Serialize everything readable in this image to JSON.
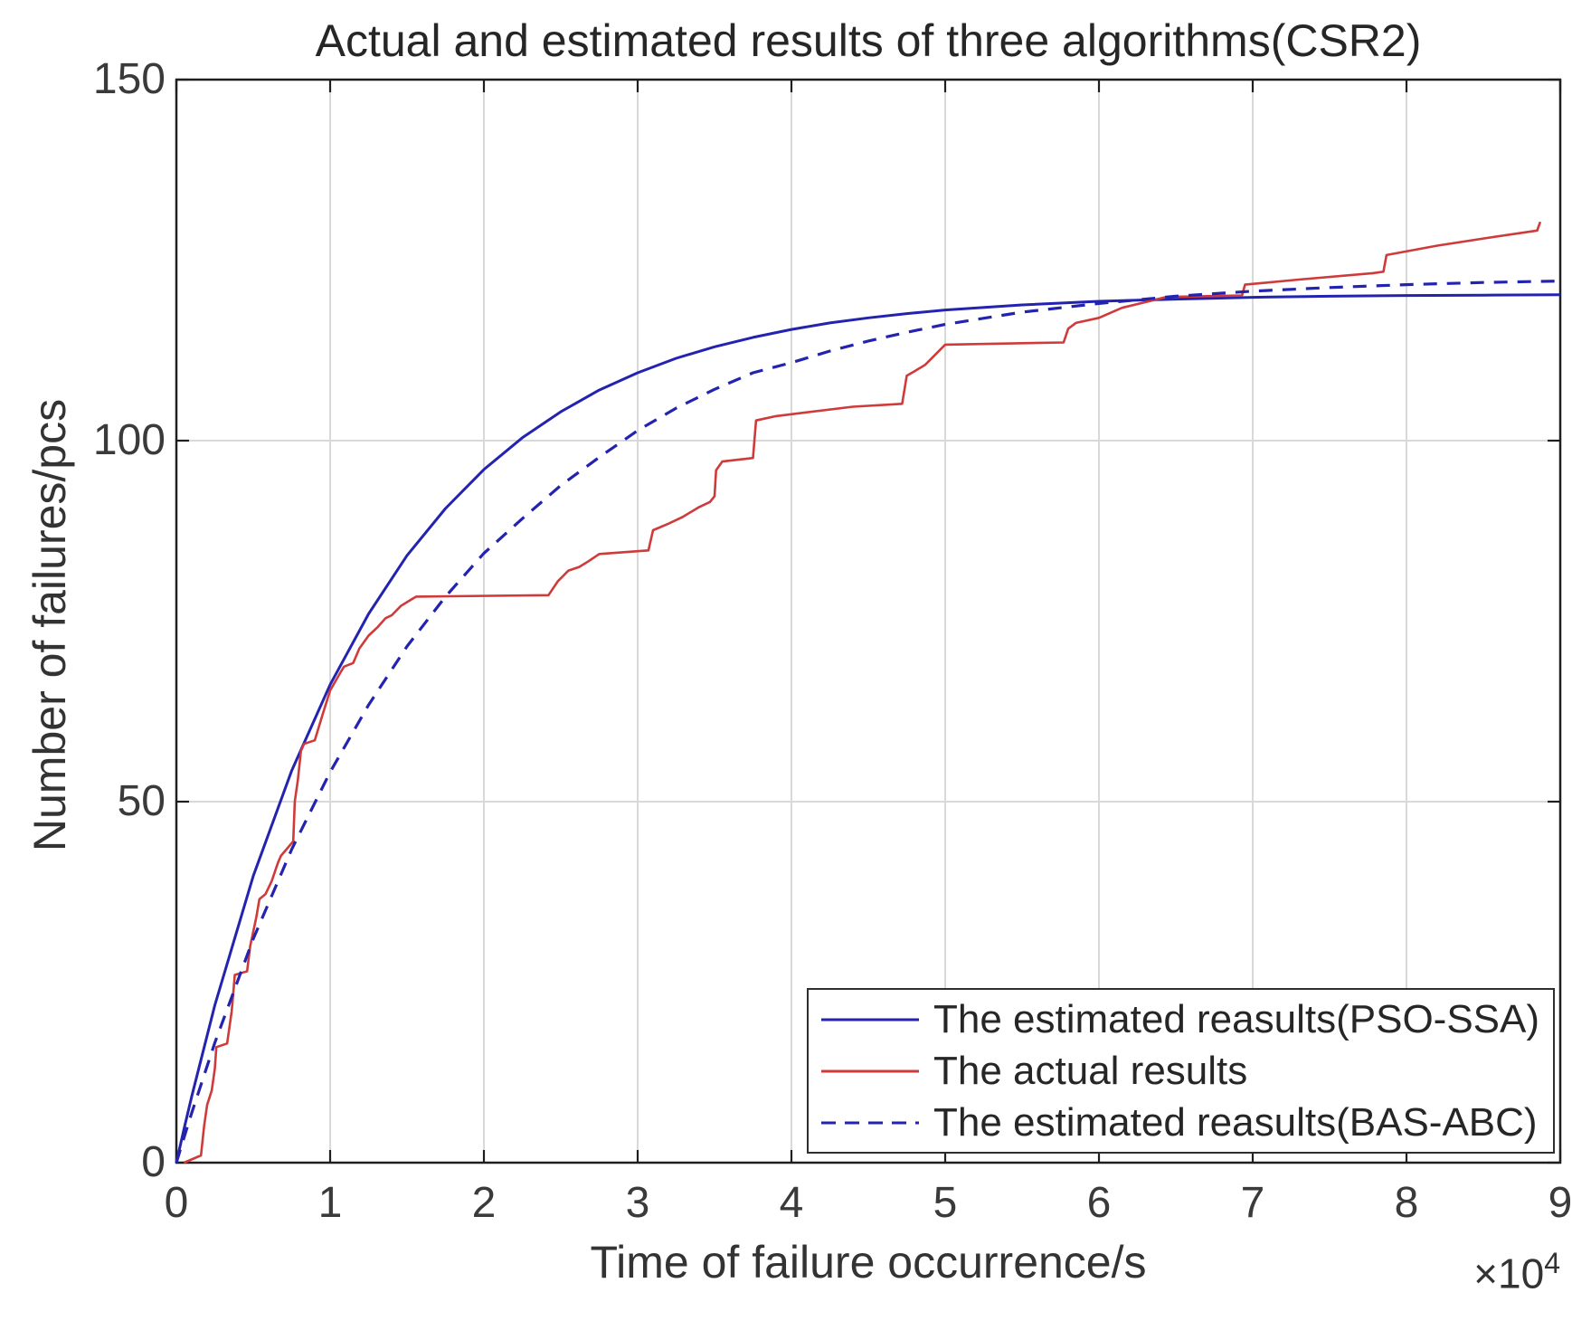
{
  "figure": {
    "title": "Actual and estimated results of three algorithms(CSR2)",
    "xlabel": "Time of failure occurrence/s",
    "ylabel": "Number of failures/pcs",
    "x_mult_base": "×10",
    "x_mult_exp": "4"
  },
  "chart_data": {
    "type": "line",
    "title": "Actual and estimated results of three algorithms(CSR2)",
    "xlabel": "Time of failure occurrence/s",
    "ylabel": "Number of failures/pcs",
    "x_unit_note": "x-axis values are ×10^4 seconds",
    "xlim": [
      0,
      9
    ],
    "ylim": [
      0,
      150
    ],
    "xticks": [
      0,
      1,
      2,
      3,
      4,
      5,
      6,
      7,
      8,
      9
    ],
    "yticks": [
      0,
      50,
      100,
      150
    ],
    "grid": true,
    "legend_position": "lower right",
    "colors": {
      "grid": "#d9d9d9",
      "axis": "#1f1f1f",
      "background": "#ffffff"
    },
    "series": [
      {
        "id": "pso-ssa",
        "name": "The estimated reasults(PSO-SSA)",
        "color": "#2323b0",
        "style": "solid",
        "width": 3,
        "dash": "",
        "points": [
          [
            0,
            0
          ],
          [
            0.05,
            4.7
          ],
          [
            0.1,
            9.2
          ],
          [
            0.25,
            21.8
          ],
          [
            0.5,
            39.7
          ],
          [
            0.75,
            54.3
          ],
          [
            1,
            66.2
          ],
          [
            1.25,
            76
          ],
          [
            1.5,
            84.1
          ],
          [
            1.75,
            90.6
          ],
          [
            2,
            96
          ],
          [
            2.25,
            100.4
          ],
          [
            2.5,
            104
          ],
          [
            2.75,
            107
          ],
          [
            3,
            109.4
          ],
          [
            3.25,
            111.4
          ],
          [
            3.5,
            113
          ],
          [
            3.75,
            114.3
          ],
          [
            4,
            115.4
          ],
          [
            4.25,
            116.3
          ],
          [
            4.5,
            117
          ],
          [
            4.75,
            117.6
          ],
          [
            5,
            118.1
          ],
          [
            5.5,
            118.8
          ],
          [
            6,
            119.3
          ],
          [
            6.5,
            119.6
          ],
          [
            7,
            119.85
          ],
          [
            7.5,
            120
          ],
          [
            8,
            120.1
          ],
          [
            8.5,
            120.15
          ],
          [
            9,
            120.2
          ]
        ]
      },
      {
        "id": "actual",
        "name": "The actual results",
        "color": "#cf3a3a",
        "style": "solid",
        "width": 2.6,
        "dash": "",
        "points": [
          [
            0.05,
            0
          ],
          [
            0.16,
            1
          ],
          [
            0.18,
            5
          ],
          [
            0.2,
            8
          ],
          [
            0.23,
            10
          ],
          [
            0.25,
            13
          ],
          [
            0.26,
            16
          ],
          [
            0.33,
            16.5
          ],
          [
            0.36,
            21
          ],
          [
            0.38,
            26
          ],
          [
            0.46,
            26.5
          ],
          [
            0.48,
            30
          ],
          [
            0.52,
            34
          ],
          [
            0.54,
            36.5
          ],
          [
            0.58,
            37.2
          ],
          [
            0.62,
            39
          ],
          [
            0.66,
            41.5
          ],
          [
            0.68,
            42.5
          ],
          [
            0.76,
            44.5
          ],
          [
            0.77,
            50
          ],
          [
            0.79,
            53
          ],
          [
            0.81,
            57
          ],
          [
            0.83,
            58
          ],
          [
            0.9,
            58.5
          ],
          [
            0.95,
            62
          ],
          [
            1,
            65.4
          ],
          [
            1.07,
            68
          ],
          [
            1.09,
            68.7
          ],
          [
            1.15,
            69.2
          ],
          [
            1.19,
            71.2
          ],
          [
            1.25,
            73
          ],
          [
            1.31,
            74.2
          ],
          [
            1.36,
            75.4
          ],
          [
            1.4,
            75.8
          ],
          [
            1.46,
            77.1
          ],
          [
            1.52,
            77.9
          ],
          [
            1.56,
            78.4
          ],
          [
            2.42,
            78.6
          ],
          [
            2.48,
            80.5
          ],
          [
            2.55,
            82
          ],
          [
            2.62,
            82.5
          ],
          [
            2.68,
            83.3
          ],
          [
            2.75,
            84.3
          ],
          [
            3.07,
            84.8
          ],
          [
            3.1,
            87.6
          ],
          [
            3.2,
            88.5
          ],
          [
            3.29,
            89.4
          ],
          [
            3.4,
            90.8
          ],
          [
            3.47,
            91.5
          ],
          [
            3.5,
            92.3
          ],
          [
            3.51,
            95.9
          ],
          [
            3.55,
            97.1
          ],
          [
            3.75,
            97.6
          ],
          [
            3.77,
            102.8
          ],
          [
            3.9,
            103.4
          ],
          [
            4.4,
            104.7
          ],
          [
            4.72,
            105.1
          ],
          [
            4.75,
            109
          ],
          [
            4.8,
            109.6
          ],
          [
            4.87,
            110.5
          ],
          [
            5,
            113.3
          ],
          [
            5.77,
            113.6
          ],
          [
            5.8,
            115.5
          ],
          [
            5.85,
            116.3
          ],
          [
            6,
            117
          ],
          [
            6.15,
            118.4
          ],
          [
            6.44,
            119.9
          ],
          [
            6.93,
            120.1
          ],
          [
            6.95,
            121.6
          ],
          [
            7.3,
            122.3
          ],
          [
            7.78,
            123.2
          ],
          [
            7.85,
            123.4
          ],
          [
            7.87,
            125.7
          ],
          [
            8.2,
            127
          ],
          [
            8.5,
            128
          ],
          [
            8.85,
            129.1
          ],
          [
            8.87,
            130.3
          ]
        ]
      },
      {
        "id": "bas-abc",
        "name": "The estimated reasults(BAS-ABC)",
        "color": "#2323b0",
        "style": "dashed",
        "width": 3.2,
        "dash": "15 11",
        "points": [
          [
            0,
            0
          ],
          [
            0.05,
            3.5
          ],
          [
            0.1,
            6.9
          ],
          [
            0.25,
            16.6
          ],
          [
            0.5,
            31
          ],
          [
            0.75,
            43.4
          ],
          [
            1,
            54.1
          ],
          [
            1.25,
            63.4
          ],
          [
            1.5,
            71.5
          ],
          [
            1.75,
            78.4
          ],
          [
            2,
            84.4
          ],
          [
            2.25,
            89.2
          ],
          [
            2.5,
            93.8
          ],
          [
            2.75,
            97.7
          ],
          [
            3,
            101.4
          ],
          [
            3.25,
            104.5
          ],
          [
            3.5,
            107.1
          ],
          [
            3.75,
            109.4
          ],
          [
            4,
            110.8
          ],
          [
            4.25,
            112.4
          ],
          [
            4.5,
            113.8
          ],
          [
            4.75,
            115
          ],
          [
            5,
            116.1
          ],
          [
            5.5,
            117.8
          ],
          [
            6,
            119
          ],
          [
            6.5,
            120
          ],
          [
            7,
            120.7
          ],
          [
            7.5,
            121.2
          ],
          [
            8,
            121.6
          ],
          [
            8.5,
            121.9
          ],
          [
            9,
            122.1
          ]
        ]
      }
    ]
  }
}
